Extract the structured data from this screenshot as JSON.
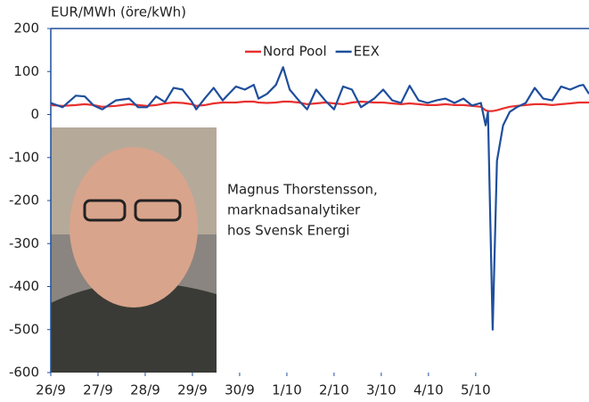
{
  "chart_data": {
    "type": "line",
    "y_label": "EUR/MWh (öre/kWh)",
    "x": [
      0,
      0.25,
      0.53,
      0.72,
      0.91,
      1.09,
      1.38,
      1.66,
      1.85,
      2.04,
      2.23,
      2.42,
      2.6,
      2.79,
      2.98,
      3.08,
      3.26,
      3.45,
      3.64,
      3.92,
      4.11,
      4.3,
      4.4,
      4.58,
      4.77,
      4.92,
      5.06,
      5.25,
      5.43,
      5.62,
      5.81,
      6.0,
      6.19,
      6.38,
      6.57,
      6.85,
      7.04,
      7.23,
      7.42,
      7.6,
      7.79,
      7.98,
      8.17,
      8.36,
      8.55,
      8.74,
      8.92,
      9.11,
      9.21,
      9.26,
      9.36,
      9.45,
      9.58,
      9.72,
      9.87,
      10.06,
      10.25,
      10.43,
      10.62,
      10.81,
      11.0,
      11.19,
      11.28,
      11.4
    ],
    "series": [
      {
        "name": "Nord Pool",
        "color": "#e8312f",
        "values": [
          22,
          20,
          22,
          24,
          22,
          18,
          20,
          24,
          22,
          20,
          22,
          26,
          28,
          27,
          24,
          20,
          22,
          26,
          28,
          28,
          30,
          30,
          28,
          27,
          28,
          30,
          30,
          28,
          24,
          26,
          28,
          26,
          24,
          28,
          30,
          28,
          28,
          26,
          24,
          26,
          24,
          22,
          22,
          24,
          22,
          22,
          20,
          18,
          10,
          8,
          8,
          10,
          14,
          18,
          20,
          22,
          24,
          24,
          22,
          24,
          26,
          28,
          28,
          28
        ]
      },
      {
        "name": "EEX",
        "color": "#1f4e9c",
        "values": [
          27,
          17,
          44,
          42,
          21,
          12,
          33,
          37,
          17,
          17,
          42,
          29,
          62,
          58,
          31,
          12,
          37,
          62,
          33,
          65,
          58,
          69,
          37,
          48,
          69,
          110,
          58,
          33,
          12,
          58,
          33,
          12,
          65,
          58,
          17,
          37,
          58,
          33,
          27,
          67,
          33,
          27,
          33,
          37,
          27,
          37,
          21,
          27,
          -25,
          6,
          -500,
          -108,
          -25,
          6,
          17,
          27,
          62,
          37,
          33,
          65,
          58,
          67,
          69,
          48
        ]
      }
    ],
    "xlim": [
      0,
      11.4
    ],
    "xticks": [
      {
        "value": 0,
        "label": "26/9"
      },
      {
        "value": 1,
        "label": "27/9"
      },
      {
        "value": 2,
        "label": "28/9"
      },
      {
        "value": 3,
        "label": "29/9"
      },
      {
        "value": 4,
        "label": "30/9"
      },
      {
        "value": 5,
        "label": "1/10"
      },
      {
        "value": 6,
        "label": "2/10"
      },
      {
        "value": 7,
        "label": "3/10"
      },
      {
        "value": 8,
        "label": "4/10"
      },
      {
        "value": 9,
        "label": "5/10"
      }
    ],
    "ylim": [
      -600,
      200
    ],
    "yticks": [
      -600,
      -500,
      -400,
      -300,
      -200,
      -100,
      0,
      100,
      200
    ],
    "legend": "top"
  },
  "photo_caption": [
    "Magnus Thorstensson,",
    "marknadsanalytiker",
    "hos Svensk Energi"
  ]
}
